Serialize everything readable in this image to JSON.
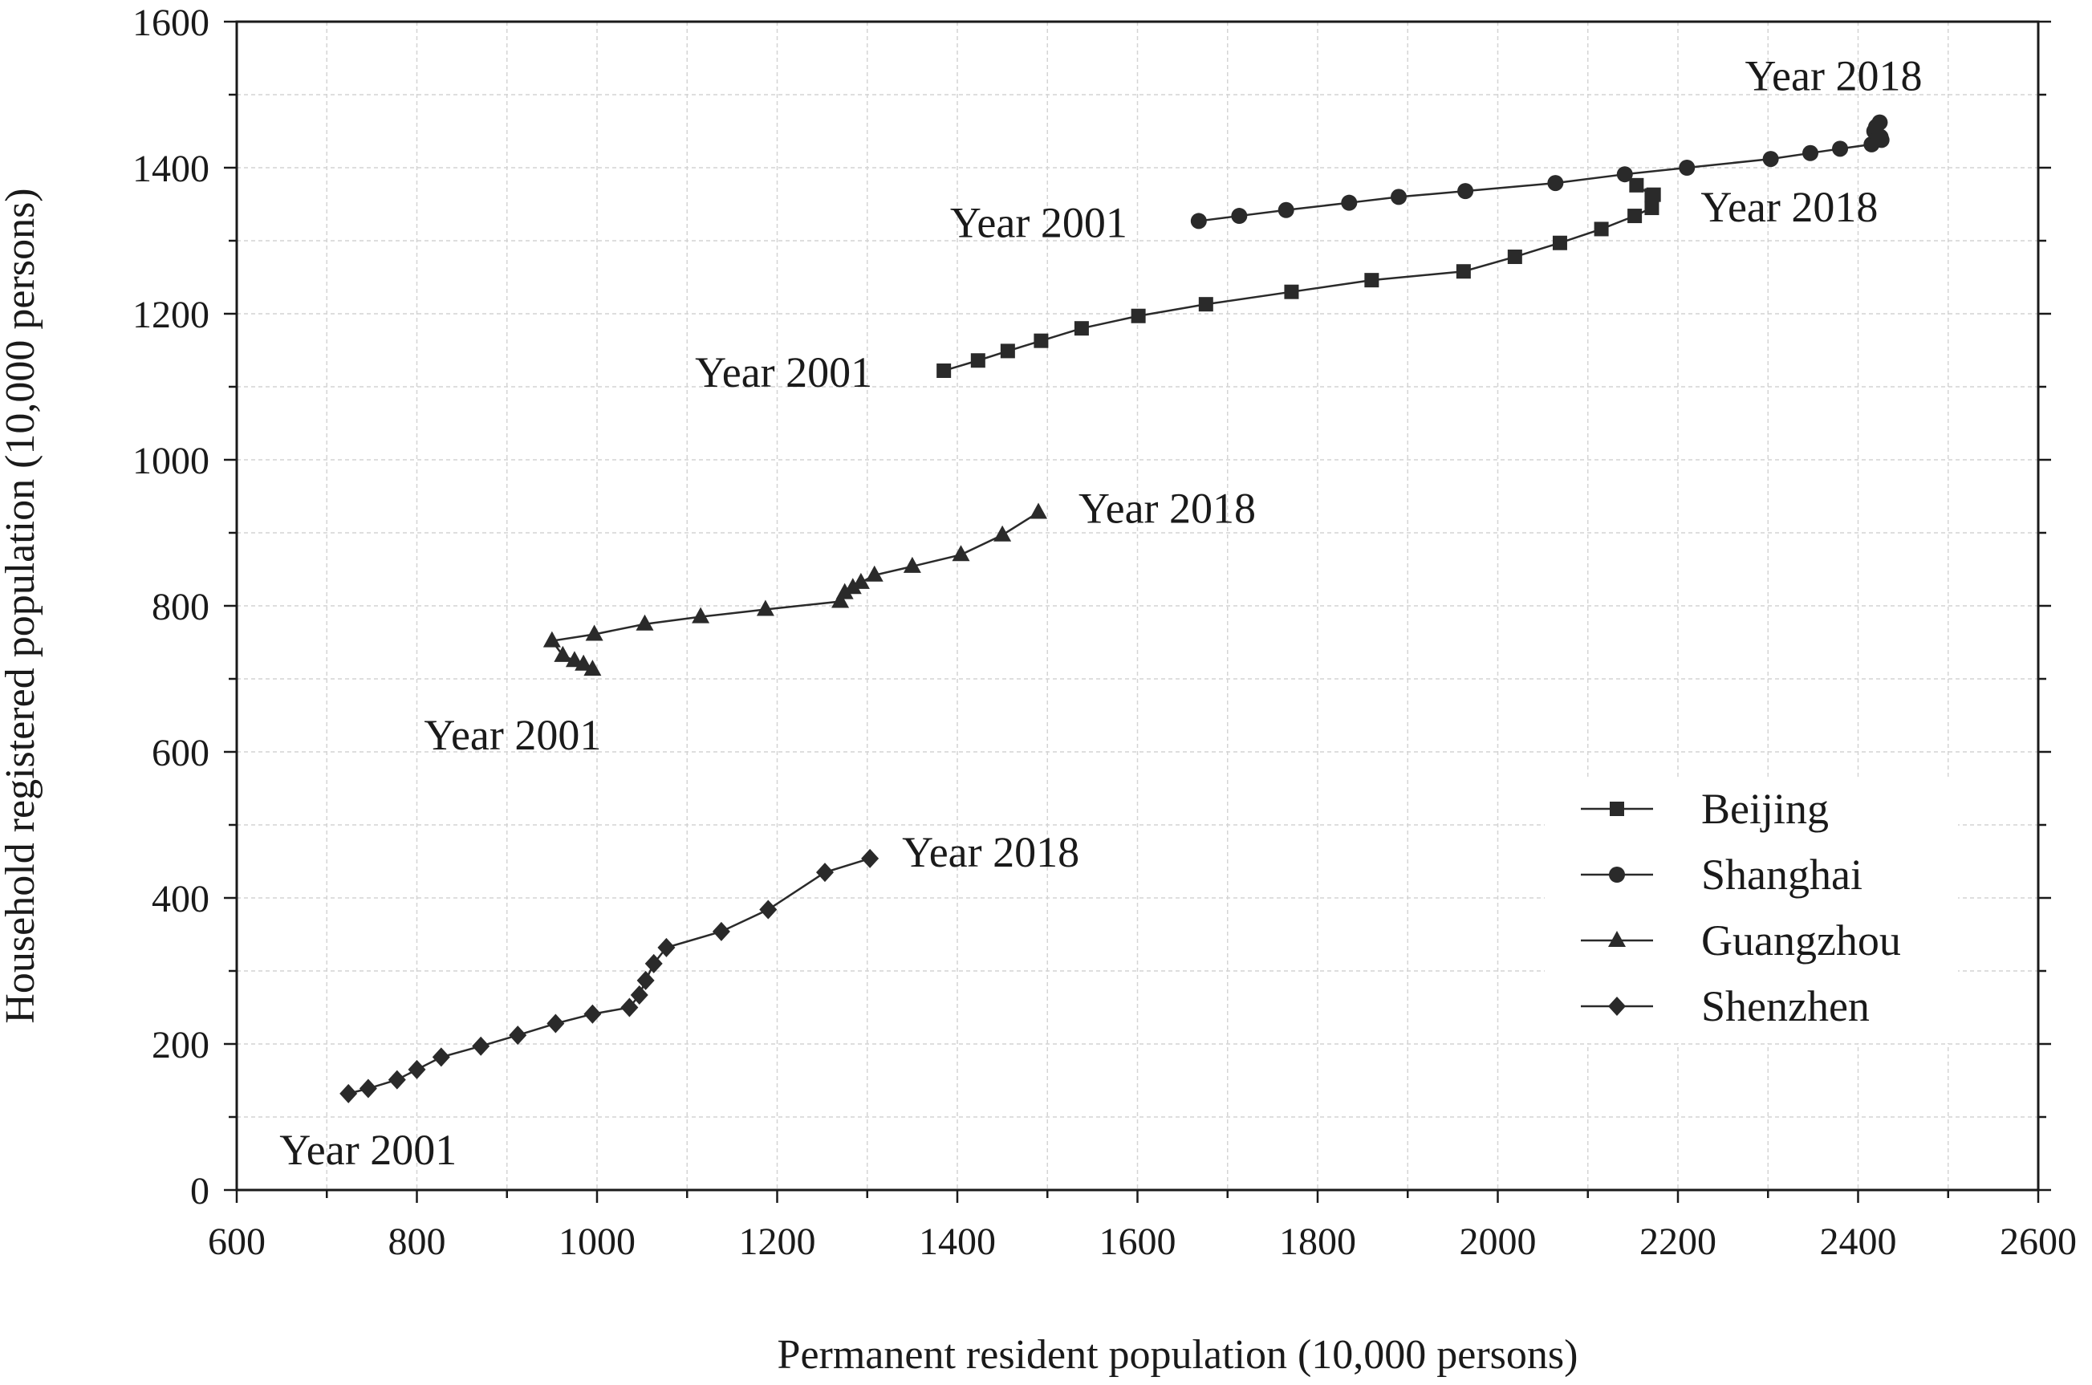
{
  "chart_data": {
    "type": "scatter",
    "title": "",
    "xlabel": "Permanent resident population (10,000 persons)",
    "ylabel": "Household registered population (10,000 persons)",
    "xlim": [
      600,
      2600
    ],
    "ylim": [
      0,
      1600
    ],
    "xticks": [
      "600",
      "800",
      "1000",
      "1200",
      "1400",
      "1600",
      "1800",
      "2000",
      "2200",
      "2400",
      "2600"
    ],
    "yticks": [
      "0",
      "200",
      "400",
      "600",
      "800",
      "1000",
      "1200",
      "1400",
      "1600"
    ],
    "grid": true,
    "legend_position": "bottom-right",
    "line_color": "#2a2a2a",
    "series": [
      {
        "name": "Beijing",
        "marker": "square",
        "points": [
          [
            1385,
            1122
          ],
          [
            1423,
            1136
          ],
          [
            1456,
            1149
          ],
          [
            1493,
            1163
          ],
          [
            1538,
            1180
          ],
          [
            1601,
            1197
          ],
          [
            1676,
            1213
          ],
          [
            1771,
            1230
          ],
          [
            1860,
            1246
          ],
          [
            1962,
            1258
          ],
          [
            2019,
            1278
          ],
          [
            2069,
            1297
          ],
          [
            2115,
            1316
          ],
          [
            2152,
            1334
          ],
          [
            2171,
            1345
          ],
          [
            2173,
            1363
          ],
          [
            2171,
            1362
          ],
          [
            2154,
            1376
          ]
        ]
      },
      {
        "name": "Shanghai",
        "marker": "circle",
        "points": [
          [
            1668,
            1327
          ],
          [
            1713,
            1334
          ],
          [
            1765,
            1342
          ],
          [
            1835,
            1352
          ],
          [
            1890,
            1360
          ],
          [
            1964,
            1368
          ],
          [
            2064,
            1379
          ],
          [
            2141,
            1391
          ],
          [
            2210,
            1400
          ],
          [
            2303,
            1412
          ],
          [
            2347,
            1420
          ],
          [
            2380,
            1426
          ],
          [
            2415,
            1432
          ],
          [
            2426,
            1438
          ],
          [
            2425,
            1442
          ],
          [
            2418,
            1450
          ],
          [
            2420,
            1456
          ],
          [
            2424,
            1462
          ]
        ]
      },
      {
        "name": "Guangzhou",
        "marker": "triangle",
        "points": [
          [
            995,
            713
          ],
          [
            985,
            720
          ],
          [
            975,
            725
          ],
          [
            962,
            732
          ],
          [
            950,
            752
          ],
          [
            997,
            761
          ],
          [
            1053,
            775
          ],
          [
            1115,
            785
          ],
          [
            1187,
            795
          ],
          [
            1270,
            806
          ],
          [
            1275,
            818
          ],
          [
            1284,
            825
          ],
          [
            1293,
            832
          ],
          [
            1308,
            842
          ],
          [
            1350,
            854
          ],
          [
            1404,
            870
          ],
          [
            1450,
            897
          ],
          [
            1490,
            928
          ]
        ]
      },
      {
        "name": "Shenzhen",
        "marker": "diamond",
        "points": [
          [
            724,
            132
          ],
          [
            746,
            139
          ],
          [
            778,
            151
          ],
          [
            800,
            165
          ],
          [
            827,
            182
          ],
          [
            871,
            197
          ],
          [
            912,
            212
          ],
          [
            954,
            228
          ],
          [
            995,
            241
          ],
          [
            1036,
            250
          ],
          [
            1047,
            267
          ],
          [
            1054,
            287
          ],
          [
            1063,
            310
          ],
          [
            1077,
            332
          ],
          [
            1138,
            354
          ],
          [
            1190,
            384
          ],
          [
            1253,
            435
          ],
          [
            1303,
            454
          ]
        ]
      }
    ],
    "annotations": [
      {
        "text": "Year 2001",
        "x": 1385,
        "y": 1122
      },
      {
        "text": "Year 2018",
        "x": 2154,
        "y": 1376
      },
      {
        "text": "Year 2001",
        "x": 1668,
        "y": 1327
      },
      {
        "text": "Year 2018",
        "x": 2424,
        "y": 1462
      },
      {
        "text": "Year 2001",
        "x": 995,
        "y": 713
      },
      {
        "text": "Year 2018",
        "x": 1490,
        "y": 928
      },
      {
        "text": "Year 2001",
        "x": 724,
        "y": 132
      },
      {
        "text": "Year 2018",
        "x": 1303,
        "y": 454
      }
    ]
  }
}
